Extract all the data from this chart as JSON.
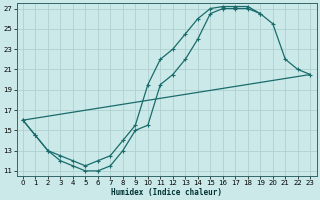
{
  "xlabel": "Humidex (Indice chaleur)",
  "bg_color": "#cce9e9",
  "line_color": "#1a6b6b",
  "grid_color": "#b0d0d0",
  "xlim": [
    -0.5,
    23.5
  ],
  "ylim": [
    10.5,
    27.5
  ],
  "xticks": [
    0,
    1,
    2,
    3,
    4,
    5,
    6,
    7,
    8,
    9,
    10,
    11,
    12,
    13,
    14,
    15,
    16,
    17,
    18,
    19,
    20,
    21,
    22,
    23
  ],
  "yticks": [
    11,
    13,
    15,
    17,
    19,
    21,
    23,
    25,
    27
  ],
  "curve1_x": [
    0,
    1,
    2,
    3,
    4,
    5,
    6,
    7,
    8,
    9,
    10,
    11,
    12,
    13,
    14,
    15,
    16,
    17,
    18,
    19,
    20,
    21,
    22,
    23
  ],
  "curve1_y": [
    16,
    14.5,
    13,
    12,
    11.5,
    11,
    11,
    11.5,
    13,
    15,
    15.5,
    19.5,
    20.5,
    22,
    24,
    26.5,
    27,
    27,
    27,
    26.5,
    25.5,
    22,
    21,
    20.5
  ],
  "curve2_x": [
    0,
    1,
    2,
    3,
    4,
    5,
    6,
    7,
    8,
    9,
    10,
    11,
    12,
    13,
    14,
    15,
    16,
    17,
    18,
    19
  ],
  "curve2_y": [
    16,
    14.5,
    13,
    12.5,
    12,
    11.5,
    12,
    12.5,
    14,
    15.5,
    19.5,
    22,
    23,
    24.5,
    26,
    27,
    27.2,
    27.2,
    27.2,
    26.5
  ],
  "line3_x": [
    0,
    23
  ],
  "line3_y": [
    16,
    20.5
  ]
}
